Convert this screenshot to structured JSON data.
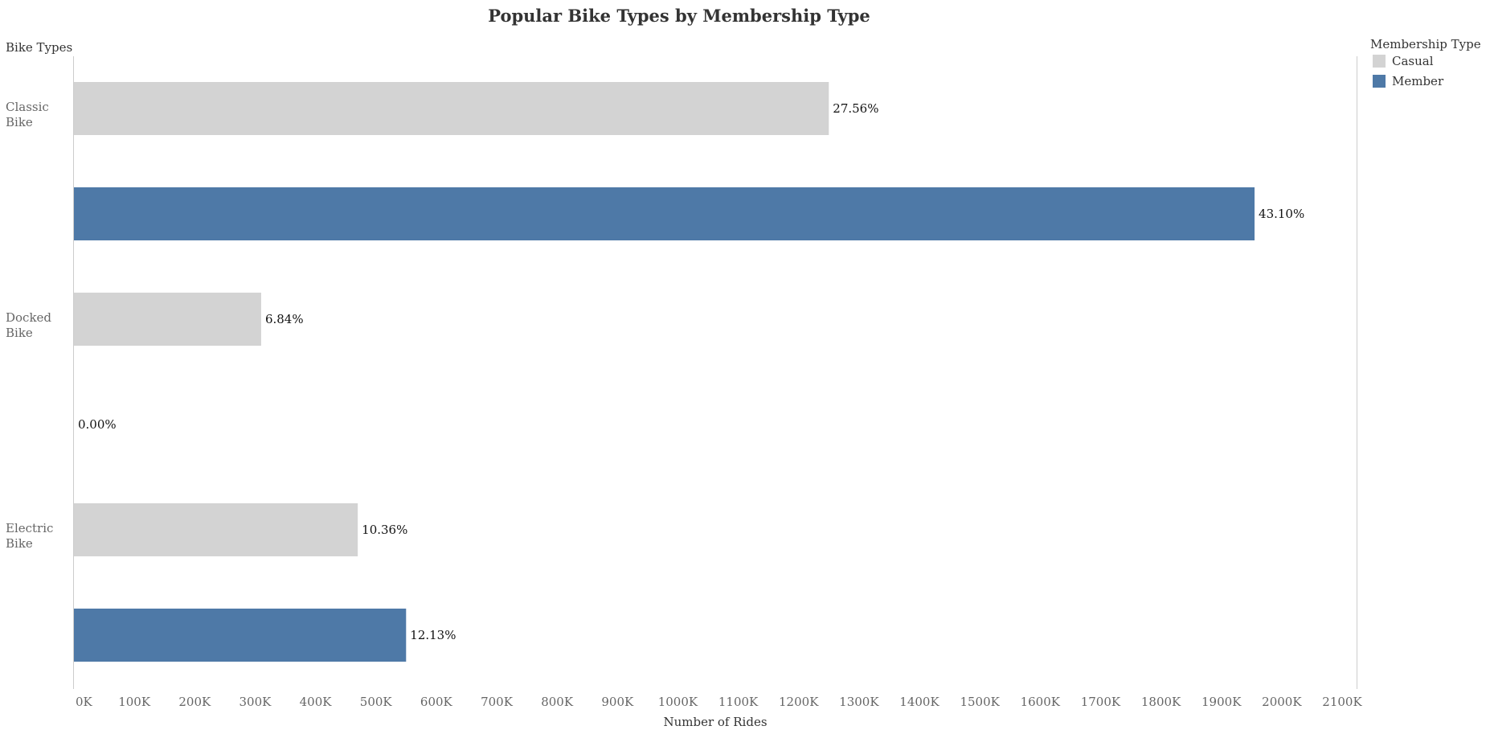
{
  "chart_data": {
    "type": "bar",
    "orientation": "horizontal",
    "title": "Popular Bike Types by Membership Type",
    "ylabel": "Bike Types",
    "xlabel": "Number of Rides",
    "xlim": [
      0,
      2100000
    ],
    "x_ticks": [
      0,
      100000,
      200000,
      300000,
      400000,
      500000,
      600000,
      700000,
      800000,
      900000,
      1000000,
      1100000,
      1200000,
      1300000,
      1400000,
      1500000,
      1600000,
      1700000,
      1800000,
      1900000,
      2000000,
      2100000
    ],
    "x_tick_labels": [
      "0K",
      "100K",
      "200K",
      "300K",
      "400K",
      "500K",
      "600K",
      "700K",
      "800K",
      "900K",
      "1000K",
      "1100K",
      "1200K",
      "1300K",
      "1400K",
      "1500K",
      "1600K",
      "1700K",
      "1800K",
      "1900K",
      "2000K",
      "2100K"
    ],
    "categories": [
      {
        "line1": "Classic",
        "line2": "Bike"
      },
      {
        "line1": "Docked",
        "line2": "Bike"
      },
      {
        "line1": "Electric",
        "line2": "Bike"
      }
    ],
    "legend": {
      "title": "Membership Type",
      "position": "top-right"
    },
    "series": [
      {
        "name": "Casual",
        "color": "#d3d3d3",
        "values": [
          1250000,
          310000,
          470000
        ],
        "labels": [
          "27.56%",
          "6.84%",
          "10.36%"
        ]
      },
      {
        "name": "Member",
        "color": "#4e79a7",
        "values": [
          1955000,
          0,
          550000
        ],
        "labels": [
          "43.10%",
          "0.00%",
          "12.13%"
        ]
      }
    ],
    "grid": false
  }
}
